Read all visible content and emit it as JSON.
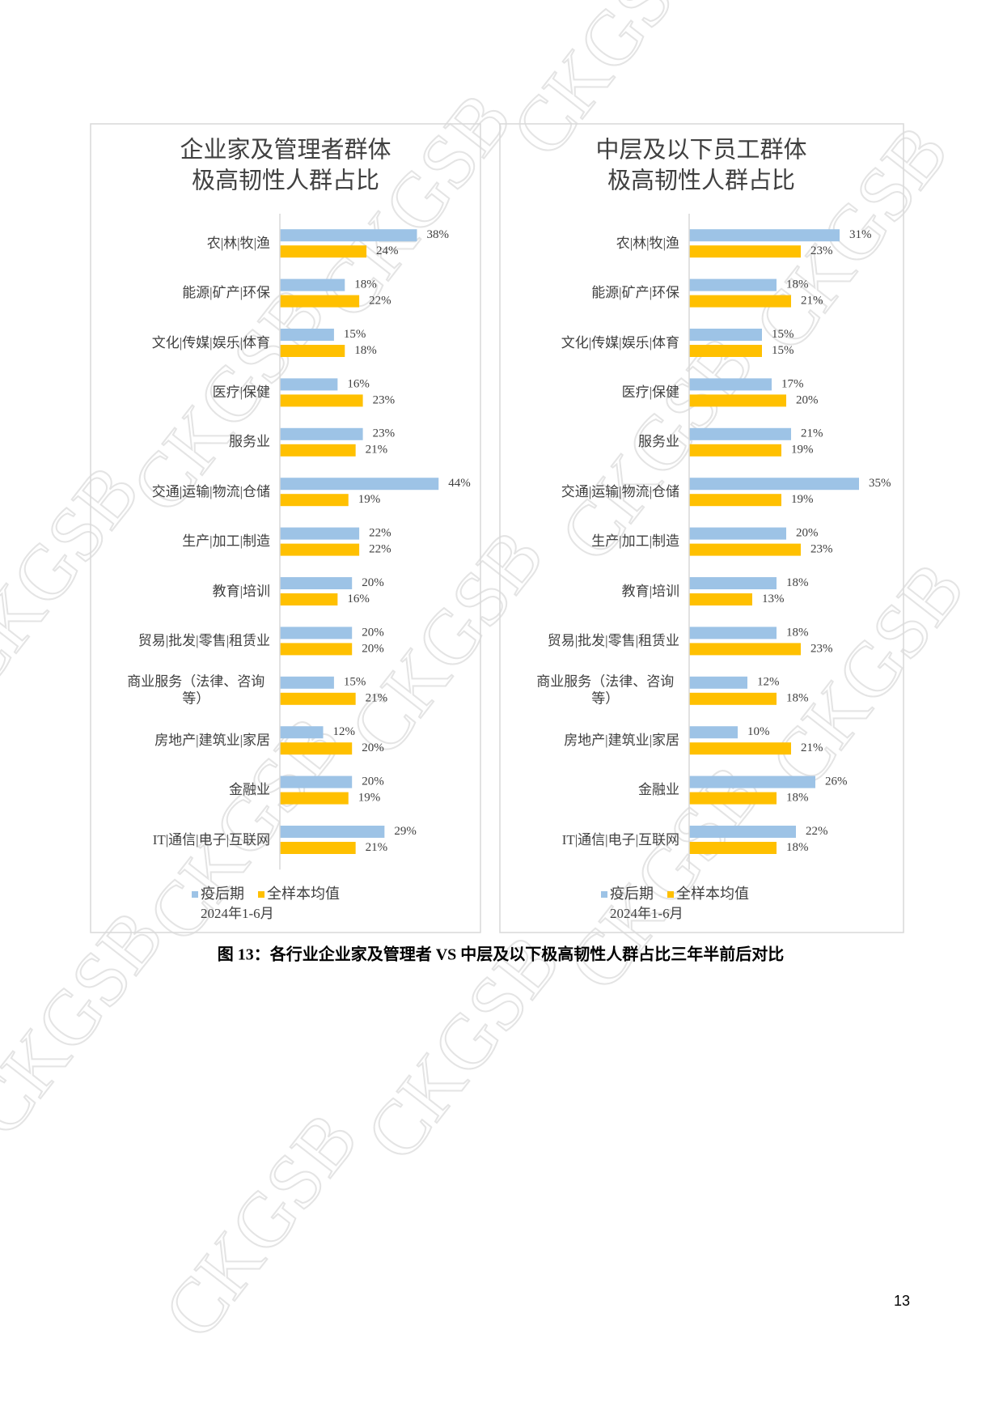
{
  "chart_data": [
    {
      "type": "barh",
      "title": "企业家及管理者群体",
      "subtitle": "极高韧性人群占比",
      "categories": [
        "农|林|牧|渔",
        "能源|矿产|环保",
        "文化|传媒|娱乐|体育",
        "医疗|保健",
        "服务业",
        "交通|运输|物流|仓储",
        "生产|加工|制造",
        "教育|培训",
        "贸易|批发|零售|租赁业",
        "商业服务（法律、咨询等）",
        "房地产|建筑业|家居",
        "金融业",
        "IT|通信|电子|互联网"
      ],
      "series": [
        {
          "name": "疫后期",
          "color": "#9dc3e6",
          "values": [
            38,
            18,
            15,
            16,
            23,
            44,
            22,
            20,
            20,
            15,
            12,
            20,
            29
          ],
          "value_labels": [
            "38%",
            "18%",
            "15%",
            "16%",
            "23%",
            "44%",
            "22%",
            "20%",
            "20%",
            "15%",
            "12%",
            "20%",
            "29%"
          ]
        },
        {
          "name": "全样本均值",
          "color": "#ffc000",
          "values": [
            24,
            22,
            18,
            23,
            21,
            19,
            22,
            16,
            20,
            21,
            20,
            19,
            21
          ],
          "value_labels": [
            "24%",
            "22%",
            "18%",
            "23%",
            "21%",
            "19%",
            "22%",
            "16%",
            "20%",
            "21%",
            "20%",
            "19%",
            "21%"
          ]
        }
      ],
      "xlim": [
        0,
        50
      ],
      "legend_note": "2024年1-6月"
    },
    {
      "type": "barh",
      "title": "中层及以下员工群体",
      "subtitle": "极高韧性人群占比",
      "categories": [
        "农|林|牧|渔",
        "能源|矿产|环保",
        "文化|传媒|娱乐|体育",
        "医疗|保健",
        "服务业",
        "交通|运输|物流|仓储",
        "生产|加工|制造",
        "教育|培训",
        "贸易|批发|零售|租赁业",
        "商业服务（法律、咨询等）",
        "房地产|建筑业|家居",
        "金融业",
        "IT|通信|电子|互联网"
      ],
      "series": [
        {
          "name": "疫后期",
          "color": "#9dc3e6",
          "values": [
            31,
            18,
            15,
            17,
            21,
            35,
            20,
            18,
            18,
            12,
            10,
            26,
            22
          ],
          "value_labels": [
            "31%",
            "18%",
            "15%",
            "17%",
            "21%",
            "35%",
            "20%",
            "18%",
            "18%",
            "12%",
            "10%",
            "26%",
            "22%"
          ]
        },
        {
          "name": "全样本均值",
          "color": "#ffc000",
          "values": [
            23,
            21,
            15,
            20,
            19,
            19,
            23,
            13,
            23,
            18,
            21,
            18,
            18
          ],
          "value_labels": [
            "23%",
            "21%",
            "15%",
            "20%",
            "19%",
            "19%",
            "23%",
            "13%",
            "23%",
            "18%",
            "21%",
            "18%",
            "18%"
          ]
        }
      ],
      "xlim": [
        0,
        40
      ],
      "legend_note": "2024年1-6月"
    }
  ],
  "caption": "图 13：各行业企业家及管理者 VS 中层及以下极高韧性人群占比三年半前后对比",
  "page_number": "13",
  "watermark": "CKGSB"
}
